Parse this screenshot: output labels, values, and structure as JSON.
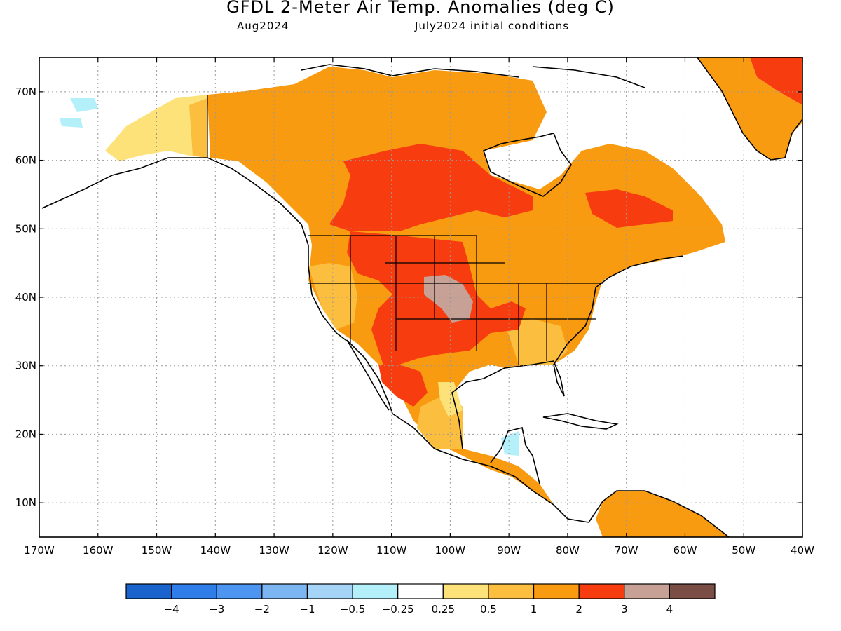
{
  "title": "GFDL 2-Meter Air Temp. Anomalies (deg C)",
  "subtitle_left": "Aug2024",
  "subtitle_right": "July2024 initial conditions",
  "map": {
    "lon_range": [
      -170,
      -40
    ],
    "lat_range": [
      5,
      75
    ],
    "lat_labels": [
      "10N",
      "20N",
      "30N",
      "40N",
      "50N",
      "60N",
      "70N"
    ],
    "lon_labels": [
      "170W",
      "160W",
      "150W",
      "140W",
      "130W",
      "120W",
      "110W",
      "100W",
      "90W",
      "80W",
      "70W",
      "60W",
      "50W",
      "40W"
    ],
    "gridlines": "dotted"
  },
  "colorbar": {
    "colors": [
      "#1a62cc",
      "#2e7de8",
      "#4c95f0",
      "#7bb6f2",
      "#a6d4f7",
      "#b4f0fa",
      "#ffffff",
      "#fde27a",
      "#fbbe3e",
      "#f89b10",
      "#f73c10",
      "#c7a096",
      "#7a4d45"
    ],
    "labels": [
      "−4",
      "−3",
      "−2",
      "−1",
      "−0.5",
      "−0.25",
      "0.25",
      "0.5",
      "1",
      "2",
      "3",
      "4"
    ]
  },
  "colors": {
    "light_blue": "#b4f0fa",
    "pale_yellow": "#fde27a",
    "light_orange": "#fbbe3e",
    "orange": "#f89b10",
    "red": "#f73c10",
    "taupe": "#c7a096"
  }
}
